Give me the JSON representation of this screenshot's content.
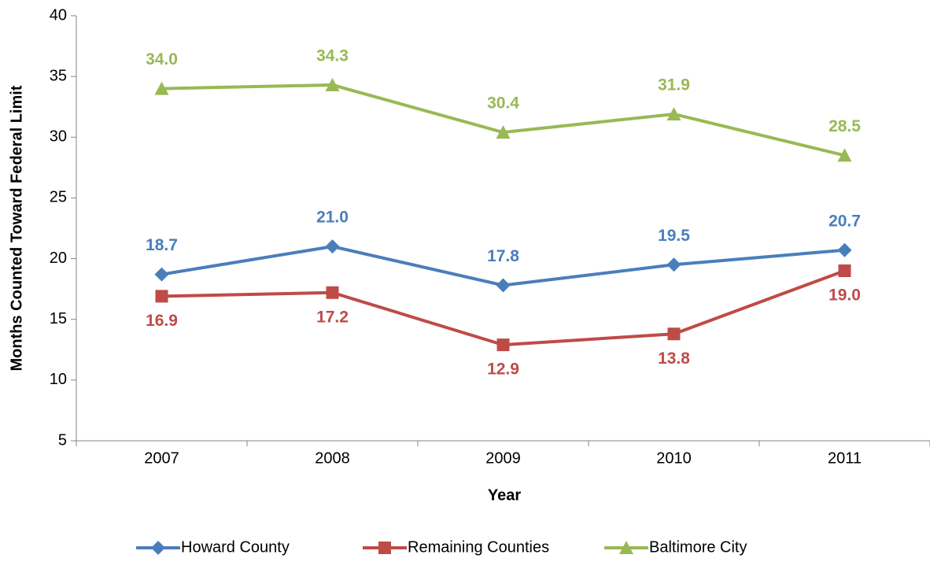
{
  "chart_data": {
    "type": "line",
    "x_label": "Year",
    "y_label": "Months Counted Toward Federal Limit",
    "categories": [
      "2007",
      "2008",
      "2009",
      "2010",
      "2011"
    ],
    "ylim": [
      5,
      40
    ],
    "yticks": [
      5,
      10,
      15,
      20,
      25,
      30,
      35,
      40
    ],
    "series": [
      {
        "name": "Howard County",
        "color": "#4a7ebb",
        "marker": "diamond",
        "values": [
          18.7,
          21.0,
          17.8,
          19.5,
          20.7
        ],
        "value_labels": [
          "18.7",
          "21.0",
          "17.8",
          "19.5",
          "20.7"
        ]
      },
      {
        "name": "Remaining Counties",
        "color": "#be4b48",
        "marker": "square",
        "values": [
          16.9,
          17.2,
          12.9,
          13.8,
          19.0
        ],
        "value_labels": [
          "16.9",
          "17.2",
          "12.9",
          "13.8",
          "19.0"
        ]
      },
      {
        "name": "Baltimore City",
        "color": "#98b954",
        "marker": "triangle",
        "values": [
          34.0,
          34.3,
          30.4,
          31.9,
          28.5
        ],
        "value_labels": [
          "34.0",
          "34.3",
          "30.4",
          "31.9",
          "28.5"
        ]
      }
    ]
  }
}
